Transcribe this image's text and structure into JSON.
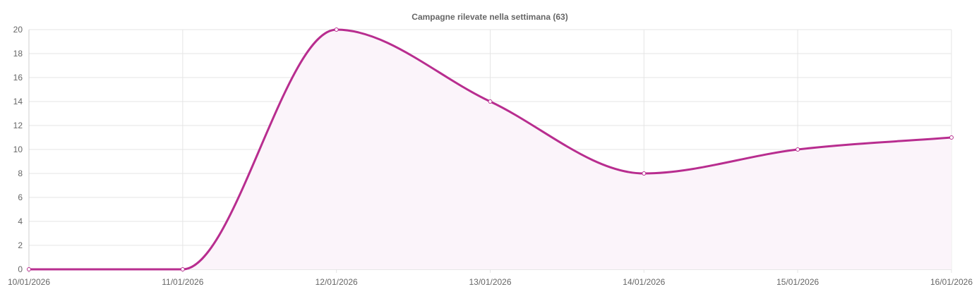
{
  "chart_data": {
    "type": "line",
    "title": "Campagne rilevate nella settimana (63)",
    "xlabel": "",
    "ylabel": "",
    "x": [
      "10/01/2026",
      "11/01/2026",
      "12/01/2026",
      "13/01/2026",
      "14/01/2026",
      "15/01/2026",
      "16/01/2026"
    ],
    "ylim": [
      0,
      20
    ],
    "yticks": [
      0,
      2,
      4,
      6,
      8,
      10,
      12,
      14,
      16,
      18,
      20
    ],
    "grid": true,
    "series": [
      {
        "values": [
          0,
          0,
          20,
          14,
          8,
          10,
          11
        ],
        "color": "#b82d8f",
        "fill": "#fbf4fa"
      }
    ]
  }
}
